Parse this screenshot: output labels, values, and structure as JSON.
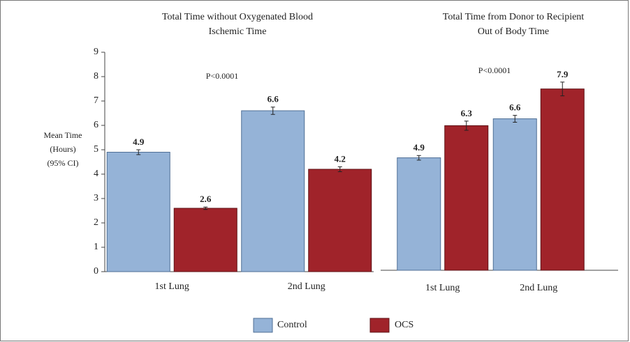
{
  "chart_data": [
    {
      "type": "bar",
      "title": "Total Time without Oxygenated Blood",
      "subtitle": "Ischemic Time",
      "annotation": "P<0.0001",
      "ylabel_lines": [
        "Mean Time",
        "(Hours)",
        "(95% CI)"
      ],
      "categories": [
        "1st Lung",
        "2nd Lung"
      ],
      "series": [
        {
          "name": "Control",
          "color": "#95b3d7",
          "values": [
            4.9,
            6.6
          ],
          "errors": [
            0.1,
            0.15
          ]
        },
        {
          "name": "OCS",
          "color": "#a0232a",
          "values": [
            2.6,
            4.2
          ],
          "errors": [
            0.05,
            0.1
          ]
        }
      ],
      "ylim": [
        0,
        9
      ],
      "yticks": [
        0,
        1,
        2,
        3,
        4,
        5,
        6,
        7,
        8,
        9
      ]
    },
    {
      "type": "bar",
      "title": "Total Time from Donor to Recipient",
      "subtitle": "Out of Body Time",
      "annotation": "P<0.0001",
      "categories": [
        "1st Lung",
        "2nd Lung"
      ],
      "series": [
        {
          "name": "Control",
          "color": "#95b3d7",
          "values": [
            4.9,
            6.6
          ],
          "errors": [
            0.1,
            0.15
          ]
        },
        {
          "name": "OCS",
          "color": "#a0232a",
          "values": [
            6.3,
            7.9
          ],
          "errors": [
            0.2,
            0.3
          ]
        }
      ],
      "ylim": [
        0,
        9.5
      ]
    }
  ]
}
